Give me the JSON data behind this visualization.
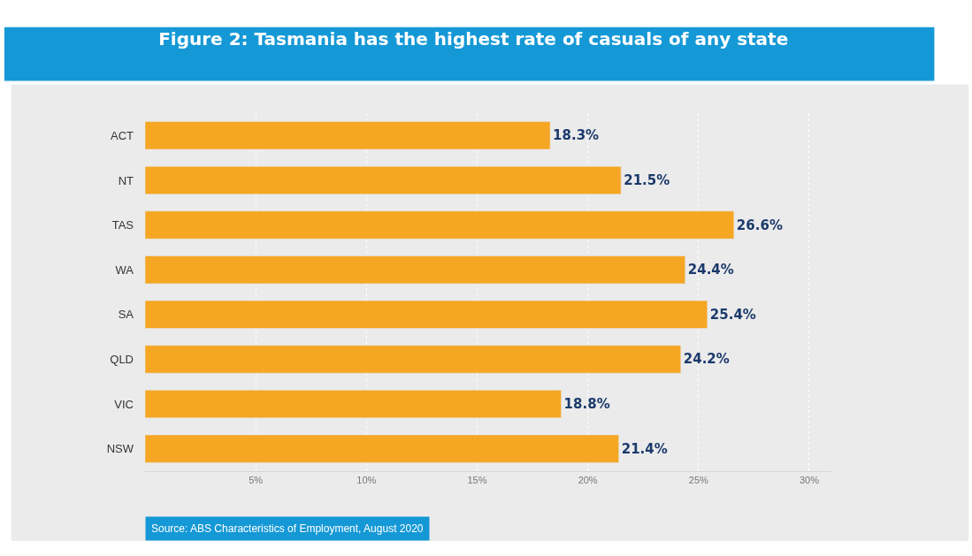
{
  "chart_data": {
    "type": "bar",
    "orientation": "horizontal",
    "title": "Figure 2: Tasmania has the highest rate of casuals of any state",
    "categories": [
      "ACT",
      "NT",
      "TAS",
      "WA",
      "SA",
      "QLD",
      "VIC",
      "NSW"
    ],
    "values": [
      18.3,
      21.5,
      26.6,
      24.4,
      25.4,
      24.2,
      18.8,
      21.4
    ],
    "value_labels": [
      "18.3%",
      "21.5%",
      "26.6%",
      "24.4%",
      "25.4%",
      "24.2%",
      "18.8%",
      "21.4%"
    ],
    "color": "#f5a623",
    "xlim": [
      0,
      31
    ],
    "xticks": [
      {
        "value": 5,
        "label": "5%"
      },
      {
        "value": 10,
        "label": "10%"
      },
      {
        "value": 15,
        "label": "15%"
      },
      {
        "value": 20,
        "label": "20%"
      },
      {
        "value": 25,
        "label": "25%"
      },
      {
        "value": 30,
        "label": "30%"
      }
    ],
    "grid": "x",
    "legend": false,
    "annotations": [
      "Source: ABS Characteristics of Employment, August 2020"
    ]
  }
}
